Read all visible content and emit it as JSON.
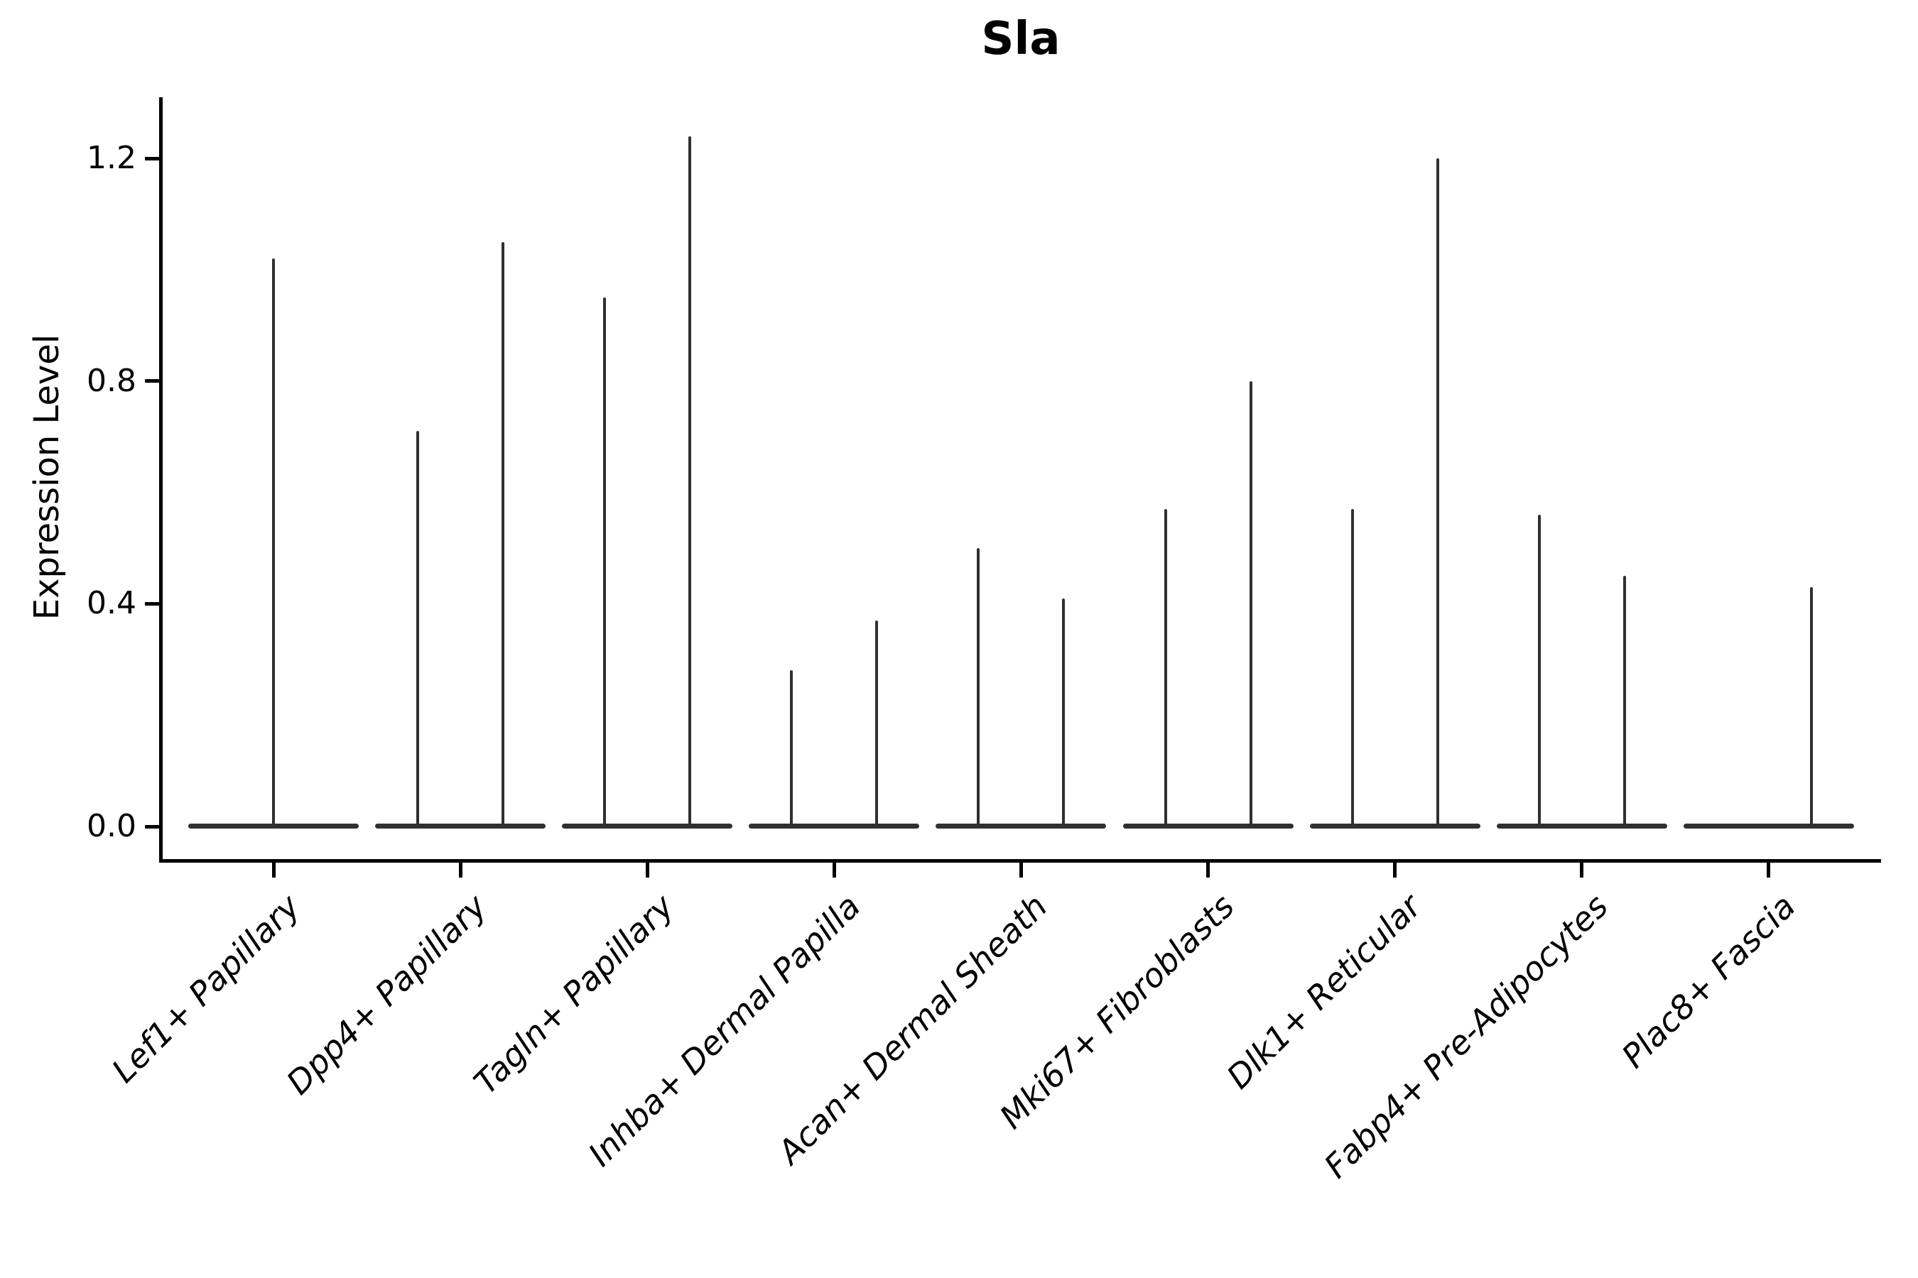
{
  "chart_data": {
    "type": "violin",
    "title": "Sla",
    "ylabel": "Expression Level",
    "xlabel": "",
    "grid": false,
    "legend": "none",
    "ylim": [
      -0.06,
      1.31
    ],
    "yticks": [
      {
        "label": "1.2",
        "value": 1.2
      },
      {
        "label": "0.8",
        "value": 0.8
      },
      {
        "label": "0.4",
        "value": 0.4
      },
      {
        "label": "0.0",
        "value": 0.0
      }
    ],
    "categories": [
      "Lef1+ Papillary",
      "Dpp4+ Papillary",
      "Tagln+ Papillary",
      "Inhba+ Dermal Papilla",
      "Acan+ Dermal Sheath",
      "Mki67+ Fibroblasts",
      "Dlk1+ Reticular",
      "Fabp4+ Pre-Adipocytes",
      "Plac8+ Fascia"
    ],
    "style_note": "Each violin is a wide flat disk at expression 0 with a thin vertical spike up to the max expression value; categories with two dodged violins have spikes at left/right slots",
    "violins": [
      {
        "category": "Lef1+ Papillary",
        "spikes": [
          {
            "slot": "center",
            "max": 1.02
          }
        ]
      },
      {
        "category": "Dpp4+ Papillary",
        "spikes": [
          {
            "slot": "left",
            "max": 0.71
          },
          {
            "slot": "right",
            "max": 1.05
          }
        ]
      },
      {
        "category": "Tagln+ Papillary",
        "spikes": [
          {
            "slot": "left",
            "max": 0.95
          },
          {
            "slot": "right",
            "max": 1.24
          }
        ]
      },
      {
        "category": "Inhba+ Dermal Papilla",
        "spikes": [
          {
            "slot": "left",
            "max": 0.28
          },
          {
            "slot": "right",
            "max": 0.37
          }
        ]
      },
      {
        "category": "Acan+ Dermal Sheath",
        "spikes": [
          {
            "slot": "left",
            "max": 0.5
          },
          {
            "slot": "right",
            "max": 0.41
          }
        ]
      },
      {
        "category": "Mki67+ Fibroblasts",
        "spikes": [
          {
            "slot": "left",
            "max": 0.57
          },
          {
            "slot": "right",
            "max": 0.8
          }
        ]
      },
      {
        "category": "Dlk1+ Reticular",
        "spikes": [
          {
            "slot": "left",
            "max": 0.57
          },
          {
            "slot": "right",
            "max": 1.2
          }
        ]
      },
      {
        "category": "Fabp4+ Pre-Adipocytes",
        "spikes": [
          {
            "slot": "left",
            "max": 0.56
          },
          {
            "slot": "right",
            "max": 0.45
          }
        ]
      },
      {
        "category": "Plac8+ Fascia",
        "spikes": [
          {
            "slot": "right",
            "max": 0.43
          }
        ]
      }
    ],
    "colors": {
      "violin": "#303030",
      "axis": "#000000",
      "text": "#000000",
      "background": "#ffffff"
    }
  }
}
